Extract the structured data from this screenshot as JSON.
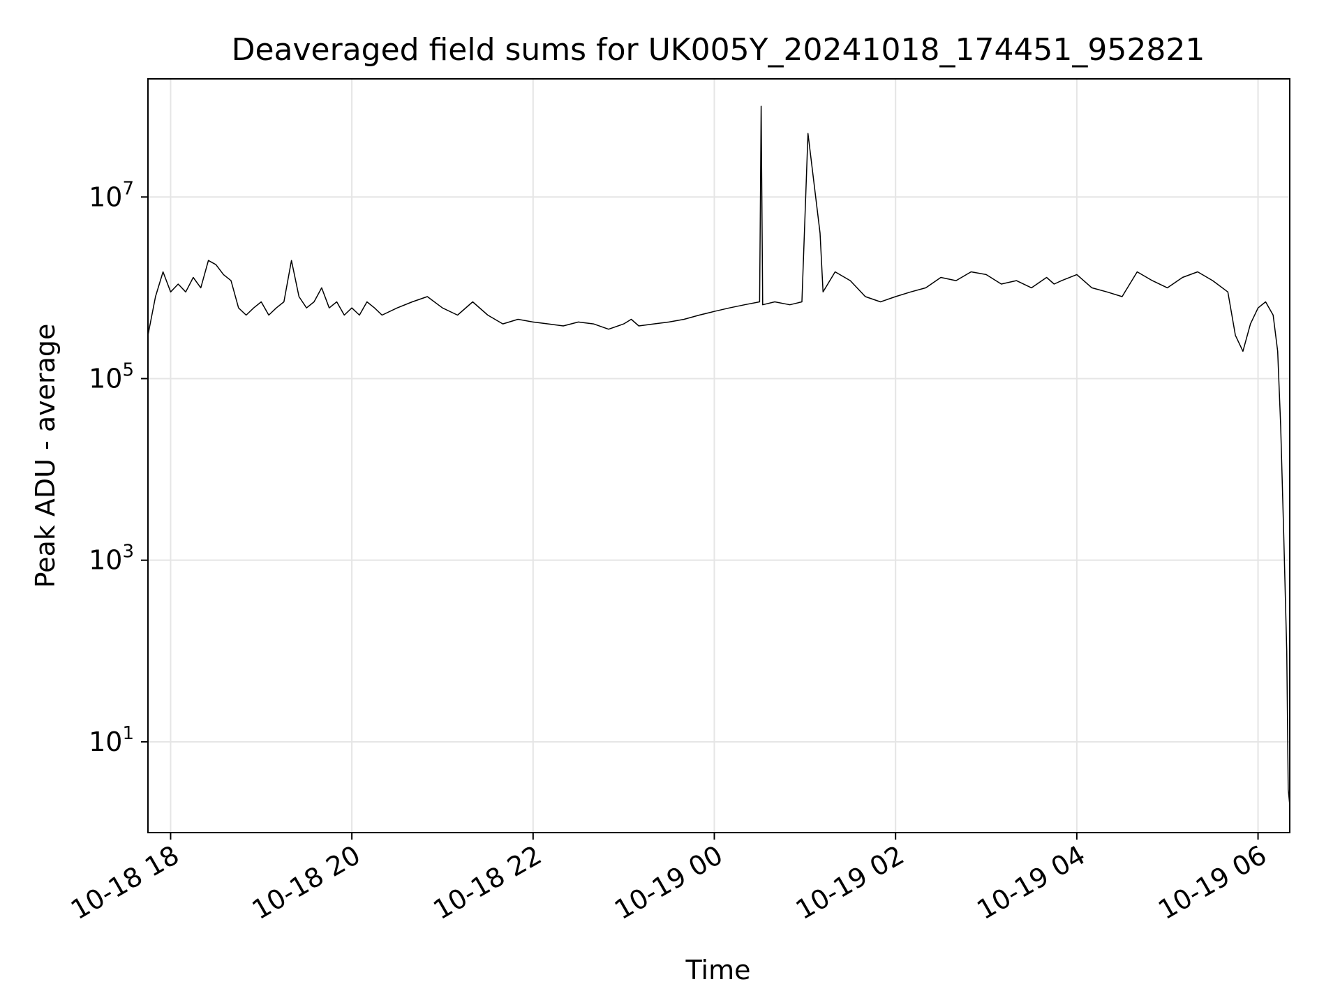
{
  "chart_data": {
    "type": "line",
    "title": "Deaveraged field sums for UK005Y_20241018_174451_952821",
    "xlabel": "Time",
    "ylabel": "Peak ADU - average",
    "yscale": "log",
    "grid": true,
    "line_color": "#000000",
    "xlim": [
      "2024-10-18T17:45",
      "2024-10-19T06:21"
    ],
    "ylim": [
      1,
      200000000
    ],
    "x_ticks": [
      {
        "value": "2024-10-18T18:00",
        "label": "10-18 18"
      },
      {
        "value": "2024-10-18T20:00",
        "label": "10-18 20"
      },
      {
        "value": "2024-10-18T22:00",
        "label": "10-18 22"
      },
      {
        "value": "2024-10-19T00:00",
        "label": "10-19 00"
      },
      {
        "value": "2024-10-19T02:00",
        "label": "10-19 02"
      },
      {
        "value": "2024-10-19T04:00",
        "label": "10-19 04"
      },
      {
        "value": "2024-10-19T06:00",
        "label": "10-19 06"
      }
    ],
    "y_ticks": [
      {
        "value": 10,
        "base": "10",
        "exp": "1"
      },
      {
        "value": 1000,
        "base": "10",
        "exp": "3"
      },
      {
        "value": 100000,
        "base": "10",
        "exp": "5"
      },
      {
        "value": 10000000,
        "base": "10",
        "exp": "7"
      }
    ],
    "series": [
      {
        "x": [
          "2024-10-18T17:45",
          "2024-10-18T17:50",
          "2024-10-18T17:55",
          "2024-10-18T18:00",
          "2024-10-18T18:05",
          "2024-10-18T18:10",
          "2024-10-18T18:15",
          "2024-10-18T18:20",
          "2024-10-18T18:25",
          "2024-10-18T18:30",
          "2024-10-18T18:35",
          "2024-10-18T18:40",
          "2024-10-18T18:45",
          "2024-10-18T18:50",
          "2024-10-18T18:55",
          "2024-10-18T19:00",
          "2024-10-18T19:05",
          "2024-10-18T19:10",
          "2024-10-18T19:15",
          "2024-10-18T19:20",
          "2024-10-18T19:25",
          "2024-10-18T19:30",
          "2024-10-18T19:35",
          "2024-10-18T19:40",
          "2024-10-18T19:45",
          "2024-10-18T19:50",
          "2024-10-18T19:55",
          "2024-10-18T20:00",
          "2024-10-18T20:05",
          "2024-10-18T20:10",
          "2024-10-18T20:15",
          "2024-10-18T20:20",
          "2024-10-18T20:30",
          "2024-10-18T20:40",
          "2024-10-18T20:50",
          "2024-10-18T21:00",
          "2024-10-18T21:10",
          "2024-10-18T21:20",
          "2024-10-18T21:30",
          "2024-10-18T21:40",
          "2024-10-18T21:50",
          "2024-10-18T22:00",
          "2024-10-18T22:10",
          "2024-10-18T22:20",
          "2024-10-18T22:30",
          "2024-10-18T22:40",
          "2024-10-18T22:50",
          "2024-10-18T23:00",
          "2024-10-18T23:05",
          "2024-10-18T23:10",
          "2024-10-18T23:20",
          "2024-10-18T23:30",
          "2024-10-18T23:40",
          "2024-10-18T23:50",
          "2024-10-19T00:00",
          "2024-10-19T00:10",
          "2024-10-19T00:20",
          "2024-10-19T00:30",
          "2024-10-19T00:31",
          "2024-10-19T00:32",
          "2024-10-19T00:40",
          "2024-10-19T00:50",
          "2024-10-19T00:58",
          "2024-10-19T01:02",
          "2024-10-19T01:10",
          "2024-10-19T01:12",
          "2024-10-19T01:20",
          "2024-10-19T01:30",
          "2024-10-19T01:40",
          "2024-10-19T01:50",
          "2024-10-19T02:00",
          "2024-10-19T02:10",
          "2024-10-19T02:20",
          "2024-10-19T02:30",
          "2024-10-19T02:40",
          "2024-10-19T02:50",
          "2024-10-19T03:00",
          "2024-10-19T03:10",
          "2024-10-19T03:20",
          "2024-10-19T03:30",
          "2024-10-19T03:40",
          "2024-10-19T03:45",
          "2024-10-19T03:50",
          "2024-10-19T04:00",
          "2024-10-19T04:10",
          "2024-10-19T04:20",
          "2024-10-19T04:30",
          "2024-10-19T04:40",
          "2024-10-19T04:50",
          "2024-10-19T05:00",
          "2024-10-19T05:10",
          "2024-10-19T05:20",
          "2024-10-19T05:30",
          "2024-10-19T05:40",
          "2024-10-19T05:45",
          "2024-10-19T05:50",
          "2024-10-19T05:55",
          "2024-10-19T06:00",
          "2024-10-19T06:05",
          "2024-10-19T06:10",
          "2024-10-19T06:13",
          "2024-10-19T06:15",
          "2024-10-19T06:17",
          "2024-10-19T06:19",
          "2024-10-19T06:20",
          "2024-10-19T06:21"
        ],
        "y": [
          300000,
          800000,
          1500000,
          900000,
          1100000,
          900000,
          1300000,
          1000000,
          2000000,
          1800000,
          1400000,
          1200000,
          600000,
          500000,
          600000,
          700000,
          500000,
          600000,
          700000,
          2000000,
          800000,
          600000,
          700000,
          1000000,
          600000,
          700000,
          500000,
          600000,
          500000,
          700000,
          600000,
          500000,
          600000,
          700000,
          800000,
          600000,
          500000,
          700000,
          500000,
          400000,
          450000,
          420000,
          400000,
          380000,
          420000,
          400000,
          350000,
          400000,
          450000,
          380000,
          400000,
          420000,
          450000,
          500000,
          550000,
          600000,
          650000,
          700000,
          100000000,
          650000,
          700000,
          650000,
          700000,
          50000000,
          4000000,
          900000,
          1500000,
          1200000,
          800000,
          700000,
          800000,
          900000,
          1000000,
          1300000,
          1200000,
          1500000,
          1400000,
          1100000,
          1200000,
          1000000,
          1300000,
          1100000,
          1200000,
          1400000,
          1000000,
          900000,
          800000,
          1500000,
          1200000,
          1000000,
          1300000,
          1500000,
          1200000,
          900000,
          300000,
          200000,
          400000,
          600000,
          700000,
          500000,
          200000,
          30000,
          2000,
          100,
          3,
          2
        ]
      }
    ]
  }
}
